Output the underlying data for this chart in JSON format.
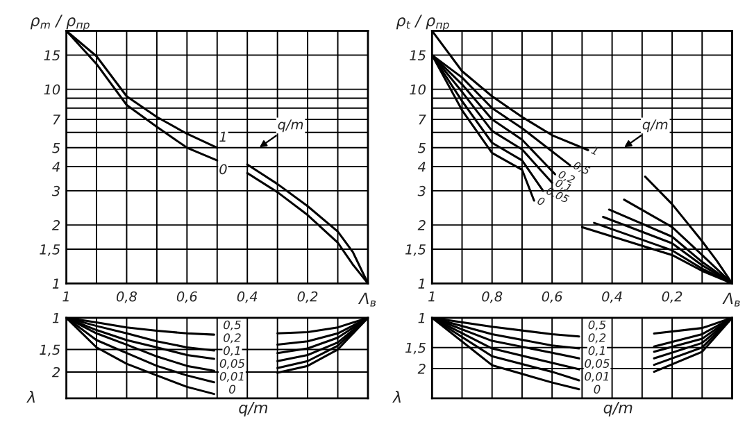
{
  "chart_data": [
    {
      "type": "line",
      "ylabel": "ρ$_{m}$ / ρ$_{пр}$",
      "xlabel": "Λ$_{в}$",
      "log": "y",
      "grid": true,
      "tick_labels": true,
      "xlim": [
        1,
        0
      ],
      "ylim": [
        1,
        20
      ],
      "xticks": [
        1,
        {
          "value": 0.9,
          "label": null
        },
        {
          "value": 0.8,
          "label": "0,8"
        },
        {
          "value": 0.7,
          "label": null
        },
        {
          "value": 0.6,
          "label": "0,6"
        },
        {
          "value": 0.5,
          "label": null
        },
        {
          "value": 0.4,
          "label": "0,4"
        },
        {
          "value": 0.3,
          "label": null
        },
        {
          "value": 0.2,
          "label": "0,2"
        },
        {
          "value": 0.1,
          "label": null
        },
        {
          "value": 0,
          "label": null
        }
      ],
      "yticks": [
        1,
        {
          "value": 1.5,
          "label": "1,5"
        },
        2,
        3,
        4,
        5,
        {
          "value": 6,
          "label": null
        },
        7,
        {
          "value": 8,
          "label": null
        },
        {
          "value": 9,
          "label": null
        },
        10,
        15,
        {
          "value": 20,
          "label": null
        }
      ],
      "annotations": [
        "q/m"
      ],
      "series": [
        {
          "name": "1",
          "color": "#000000",
          "x": [
            1,
            0.9,
            0.8,
            0.7,
            0.6,
            0.5,
            null,
            0.4,
            0.3,
            0.2,
            0.1,
            0.05,
            0
          ],
          "values": [
            20,
            14.8,
            9.2,
            7.2,
            5.9,
            5.0,
            null,
            4.1,
            3.25,
            2.5,
            1.85,
            1.45,
            1
          ]
        },
        {
          "name": "0",
          "color": "#000000",
          "x": [
            1,
            0.9,
            0.8,
            0.7,
            0.6,
            0.5,
            null,
            0.4,
            0.3,
            0.2,
            0.1,
            0.05,
            0
          ],
          "values": [
            20,
            13.5,
            8.3,
            6.4,
            5.0,
            4.3,
            null,
            3.7,
            2.95,
            2.25,
            1.62,
            1.25,
            1
          ]
        }
      ]
    },
    {
      "type": "line",
      "ylabel": "ρ$_{t}$ / ρ$_{пр}$",
      "xlabel": "Λ$_{в}$",
      "log": "y",
      "grid": true,
      "tick_labels": true,
      "xlim": [
        1,
        0
      ],
      "ylim": [
        1,
        20
      ],
      "xticks": [
        1,
        {
          "value": 0.9,
          "label": null
        },
        {
          "value": 0.8,
          "label": "0,8"
        },
        {
          "value": 0.7,
          "label": null
        },
        {
          "value": 0.6,
          "label": "0,6"
        },
        {
          "value": 0.5,
          "label": null
        },
        {
          "value": 0.4,
          "label": "0,4"
        },
        {
          "value": 0.3,
          "label": null
        },
        {
          "value": 0.2,
          "label": "0,2"
        },
        {
          "value": 0.1,
          "label": null
        },
        {
          "value": 0,
          "label": null
        }
      ],
      "yticks": [
        1,
        {
          "value": 1.5,
          "label": "1,5"
        },
        2,
        3,
        4,
        5,
        {
          "value": 6,
          "label": null
        },
        7,
        {
          "value": 8,
          "label": null
        },
        {
          "value": 9,
          "label": null
        },
        10,
        15,
        {
          "value": 20,
          "label": null
        }
      ],
      "annotations": [
        "q/m"
      ],
      "series": [
        {
          "name": "1",
          "color": "#000000",
          "x": [
            1,
            0.9,
            0.8,
            0.7,
            0.6,
            0.48,
            null,
            0.29,
            0.2,
            0.1,
            0.05,
            0
          ],
          "values": [
            20,
            12.4,
            9.2,
            7.2,
            5.8,
            4.86,
            null,
            3.55,
            2.56,
            1.65,
            1.3,
            1
          ]
        },
        {
          "name": "0,5",
          "color": "#000000",
          "x": [
            1,
            0.9,
            0.8,
            0.7,
            0.54,
            null,
            0.36,
            0.2,
            0.1,
            0
          ],
          "values": [
            15,
            11.5,
            8.0,
            6.3,
            4.06,
            null,
            2.7,
            1.95,
            1.4,
            1
          ]
        },
        {
          "name": "0,2",
          "color": "#000000",
          "x": [
            1,
            0.9,
            0.8,
            0.7,
            0.59,
            null,
            0.41,
            0.2,
            0.1,
            0
          ],
          "values": [
            15,
            10.6,
            7.0,
            5.5,
            3.65,
            null,
            2.4,
            1.74,
            1.29,
            1
          ]
        },
        {
          "name": "0,1",
          "color": "#000000",
          "x": [
            1,
            0.9,
            0.8,
            0.7,
            0.6,
            null,
            0.43,
            0.2,
            0.1,
            0
          ],
          "values": [
            15,
            9.7,
            6.1,
            4.9,
            3.3,
            null,
            2.2,
            1.61,
            1.24,
            1
          ]
        },
        {
          "name": "0,05",
          "color": "#000000",
          "x": [
            1,
            0.9,
            0.8,
            0.7,
            0.63,
            null,
            0.46,
            0.2,
            0.1,
            0
          ],
          "values": [
            15,
            8.7,
            5.3,
            4.3,
            3.0,
            null,
            2.05,
            1.48,
            1.19,
            1
          ]
        },
        {
          "name": "0",
          "color": "#000000",
          "x": [
            1,
            0.9,
            0.8,
            0.7,
            0.66,
            null,
            0.5,
            0.2,
            0.1,
            0
          ],
          "values": [
            15,
            7.8,
            4.7,
            3.85,
            2.67,
            null,
            1.95,
            1.4,
            1.16,
            1
          ]
        }
      ]
    },
    {
      "type": "line",
      "ylabel": "λ",
      "xlabel": "q/m",
      "log": "y",
      "grid": true,
      "tick_labels": "y",
      "xlim": [
        1,
        0
      ],
      "ylim": [
        2.8,
        1
      ],
      "xticks": [
        1,
        0.9,
        0.8,
        0.7,
        0.6,
        0.5,
        0.4,
        0.3,
        0.2,
        0.1,
        0
      ],
      "yticks": [
        1,
        {
          "value": 1.5,
          "label": "1,5"
        },
        2
      ],
      "series": [
        {
          "name": "0,5",
          "color": "#000000",
          "x": [
            1,
            0.9,
            0.8,
            0.7,
            0.6,
            0.51,
            null,
            0.3,
            0.2,
            0.1,
            0
          ],
          "values": [
            1,
            1.06,
            1.13,
            1.18,
            1.22,
            1.24,
            null,
            1.22,
            1.2,
            1.13,
            1
          ]
        },
        {
          "name": "0,2",
          "color": "#000000",
          "x": [
            1,
            0.9,
            0.8,
            0.7,
            0.6,
            0.51,
            null,
            0.3,
            0.2,
            0.1,
            0
          ],
          "values": [
            1,
            1.11,
            1.22,
            1.35,
            1.46,
            1.52,
            null,
            1.41,
            1.35,
            1.22,
            1
          ]
        },
        {
          "name": "0,1",
          "color": "#000000",
          "x": [
            1,
            0.9,
            0.8,
            0.7,
            0.6,
            0.51,
            null,
            0.3,
            0.2,
            0.1,
            0
          ],
          "values": [
            1,
            1.17,
            1.33,
            1.46,
            1.61,
            1.69,
            null,
            1.57,
            1.48,
            1.29,
            1
          ]
        },
        {
          "name": "0,05",
          "color": "#000000",
          "x": [
            1,
            0.9,
            0.8,
            0.7,
            0.6,
            0.51,
            null,
            0.3,
            0.2,
            0.1,
            0
          ],
          "values": [
            1,
            1.22,
            1.41,
            1.64,
            1.85,
            1.97,
            null,
            1.74,
            1.61,
            1.37,
            1
          ]
        },
        {
          "name": "0,01",
          "color": "#000000",
          "x": [
            1,
            0.9,
            0.8,
            0.7,
            0.6,
            0.51,
            null,
            0.3,
            0.2,
            0.1,
            0
          ],
          "values": [
            1,
            1.33,
            1.57,
            1.85,
            2.09,
            2.28,
            null,
            1.9,
            1.74,
            1.43,
            1
          ]
        },
        {
          "name": "0",
          "color": "#000000",
          "x": [
            1,
            0.9,
            0.8,
            0.7,
            0.6,
            0.51,
            null,
            0.3,
            0.2,
            0.1,
            0
          ],
          "values": [
            1,
            1.46,
            1.8,
            2.09,
            2.42,
            2.65,
            null,
            2.02,
            1.85,
            1.5,
            1
          ]
        }
      ]
    },
    {
      "type": "line",
      "ylabel": "λ",
      "xlabel": "q/m",
      "log": "y",
      "grid": true,
      "tick_labels": "y",
      "xlim": [
        1,
        0
      ],
      "ylim": [
        3,
        1
      ],
      "xticks": [
        1,
        0.9,
        0.8,
        0.7,
        0.6,
        0.5,
        0.4,
        0.3,
        0.2,
        0.1,
        0
      ],
      "yticks": [
        1,
        {
          "value": 1.5,
          "label": "1,5"
        },
        2
      ],
      "series": [
        {
          "name": "0,5",
          "color": "#000000",
          "x": [
            1,
            0.8,
            0.6,
            0.51,
            null,
            0.26,
            0.1,
            0
          ],
          "values": [
            1,
            1.13,
            1.25,
            1.29,
            null,
            1.24,
            1.15,
            1
          ]
        },
        {
          "name": "0,2",
          "color": "#000000",
          "x": [
            1,
            0.8,
            0.6,
            0.51,
            null,
            0.26,
            0.1,
            0
          ],
          "values": [
            1,
            1.25,
            1.46,
            1.52,
            null,
            1.48,
            1.25,
            1
          ]
        },
        {
          "name": "0,1",
          "color": "#000000",
          "x": [
            1,
            0.8,
            0.6,
            0.51,
            null,
            0.26,
            0.1,
            0
          ],
          "values": [
            1,
            1.37,
            1.61,
            1.74,
            null,
            1.59,
            1.33,
            1
          ]
        },
        {
          "name": "0,05",
          "color": "#000000",
          "x": [
            1,
            0.8,
            0.6,
            0.51,
            null,
            0.26,
            0.1,
            0
          ],
          "values": [
            1,
            1.52,
            1.85,
            2.02,
            null,
            1.74,
            1.41,
            1
          ]
        },
        {
          "name": "0,01",
          "color": "#000000",
          "x": [
            1,
            0.8,
            0.6,
            0.51,
            null,
            0.26,
            0.1,
            0
          ],
          "values": [
            1,
            1.69,
            2.09,
            2.35,
            null,
            1.9,
            1.5,
            1
          ]
        },
        {
          "name": "0",
          "color": "#000000",
          "x": [
            1,
            0.8,
            0.6,
            0.51,
            null,
            0.26,
            0.1,
            0
          ],
          "values": [
            1,
            1.91,
            2.42,
            2.65,
            null,
            2.09,
            1.59,
            1
          ]
        }
      ]
    }
  ]
}
